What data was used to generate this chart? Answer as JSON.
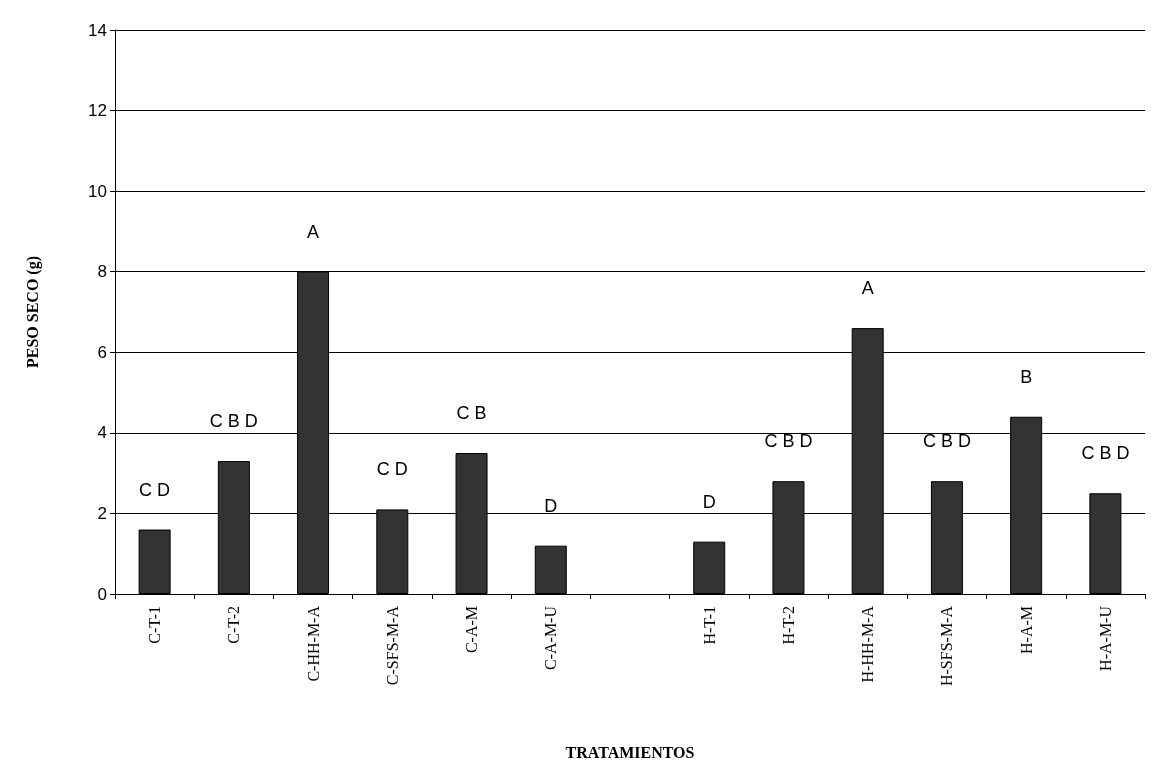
{
  "chart_data": {
    "type": "bar",
    "xlabel": "TRATAMIENTOS",
    "ylabel": "PESO SECO (g)",
    "categories": [
      "C-T-1",
      "C-T-2",
      "C-HH-M-A",
      "C-SFS-M-A",
      "C-A-M",
      "C-A-M-U",
      null,
      "H-T-1",
      "H-T-2",
      "H-HH-M-A",
      "H-SFS-M-A",
      "H-A-M",
      "H-A-M-U"
    ],
    "values": [
      1.6,
      3.3,
      8.0,
      2.1,
      3.5,
      1.2,
      null,
      1.3,
      2.8,
      6.6,
      2.8,
      4.4,
      2.5
    ],
    "color": "#333333",
    "ylim": [
      0,
      14
    ],
    "yticks": [
      0,
      2,
      4,
      6,
      8,
      10,
      12,
      14
    ],
    "grid": "y",
    "annotations": [
      "C D",
      "C B D",
      "A",
      "C D",
      "C B",
      "D",
      "D",
      "C B D",
      "A",
      "C B D",
      "B",
      "C B D"
    ]
  }
}
